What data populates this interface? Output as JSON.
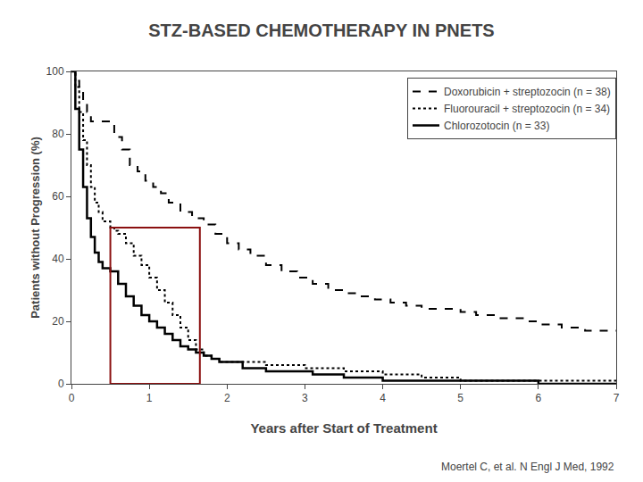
{
  "chart_data": {
    "type": "line",
    "title": "STZ-BASED CHEMOTHERAPY IN PNETS",
    "x_label": "Years after Start of Treatment",
    "y_label": "Patients without Progression (%)",
    "xlim": [
      0,
      7
    ],
    "ylim": [
      0,
      100
    ],
    "xticks": [
      0,
      1,
      2,
      3,
      4,
      5,
      6,
      7
    ],
    "yticks": [
      0,
      20,
      40,
      60,
      80,
      100
    ],
    "grid": false,
    "legend": "upper right",
    "annotations": [
      "Moertel C, et al. N Engl J Med, 1992"
    ],
    "rectangles": [
      {
        "x0": 0.5,
        "y0": 0,
        "x1": 1.65,
        "y1": 50,
        "color": "#8B1010"
      }
    ],
    "series": [
      {
        "name": "Doxorubicin + streptozocin (n = 38)",
        "color": "#000000",
        "line_style": "dashed",
        "x": [
          0,
          0.05,
          0.1,
          0.15,
          0.2,
          0.25,
          0.35,
          0.45,
          0.55,
          0.65,
          0.75,
          0.85,
          0.95,
          1.05,
          1.15,
          1.25,
          1.4,
          1.55,
          1.7,
          1.85,
          2.0,
          2.15,
          2.3,
          2.5,
          2.7,
          2.9,
          3.1,
          3.3,
          3.5,
          3.7,
          3.9,
          4.1,
          4.3,
          4.5,
          4.8,
          5.0,
          5.2,
          5.5,
          5.8,
          6.0,
          6.3,
          6.6,
          7.0
        ],
        "values": [
          100,
          97,
          94,
          90,
          87,
          84,
          84,
          84,
          79,
          75,
          70,
          68,
          65,
          63,
          61,
          58,
          55,
          53,
          51,
          48,
          45,
          43,
          41,
          38,
          36,
          34,
          32,
          30,
          29,
          28,
          27,
          26,
          25,
          24,
          24,
          23,
          22,
          21,
          20,
          19,
          18,
          17,
          17
        ]
      },
      {
        "name": "Fluorouracil + streptozocin (n = 34)",
        "color": "#000000",
        "line_style": "dotted",
        "x": [
          0,
          0.05,
          0.1,
          0.15,
          0.2,
          0.25,
          0.3,
          0.35,
          0.4,
          0.5,
          0.55,
          0.6,
          0.7,
          0.8,
          0.9,
          1.0,
          1.1,
          1.2,
          1.3,
          1.4,
          1.5,
          1.6,
          1.7,
          1.8,
          1.9,
          2.0,
          2.5,
          3.0,
          3.5,
          4.0,
          4.2,
          4.5,
          5.0,
          5.5,
          6.0,
          7.0
        ],
        "values": [
          100,
          95,
          87,
          78,
          70,
          63,
          58,
          55,
          52,
          50,
          49,
          48,
          45,
          41,
          38,
          34,
          30,
          26,
          22,
          18,
          14,
          11,
          9,
          8,
          7,
          7,
          6,
          5,
          4,
          3,
          3,
          2,
          1,
          1,
          1,
          1
        ]
      },
      {
        "name": "Chlorozotocin (n = 33)",
        "color": "#000000",
        "line_style": "solid",
        "x": [
          0,
          0.05,
          0.1,
          0.15,
          0.2,
          0.25,
          0.3,
          0.35,
          0.4,
          0.45,
          0.5,
          0.6,
          0.7,
          0.8,
          0.9,
          1.0,
          1.1,
          1.2,
          1.3,
          1.4,
          1.5,
          1.6,
          1.7,
          1.8,
          1.9,
          2.0,
          2.2,
          2.5,
          2.8,
          3.1,
          3.5,
          4.0,
          4.3,
          4.5,
          5.0,
          5.5,
          6.0,
          7.0
        ],
        "values": [
          100,
          88,
          75,
          63,
          53,
          47,
          42,
          39,
          37,
          37,
          36,
          32,
          28,
          25,
          22,
          20,
          18,
          16,
          14,
          12,
          11,
          10,
          9,
          8,
          7,
          7,
          5,
          4,
          4,
          3,
          2,
          1,
          1,
          1,
          1,
          1,
          0,
          0
        ]
      }
    ]
  }
}
